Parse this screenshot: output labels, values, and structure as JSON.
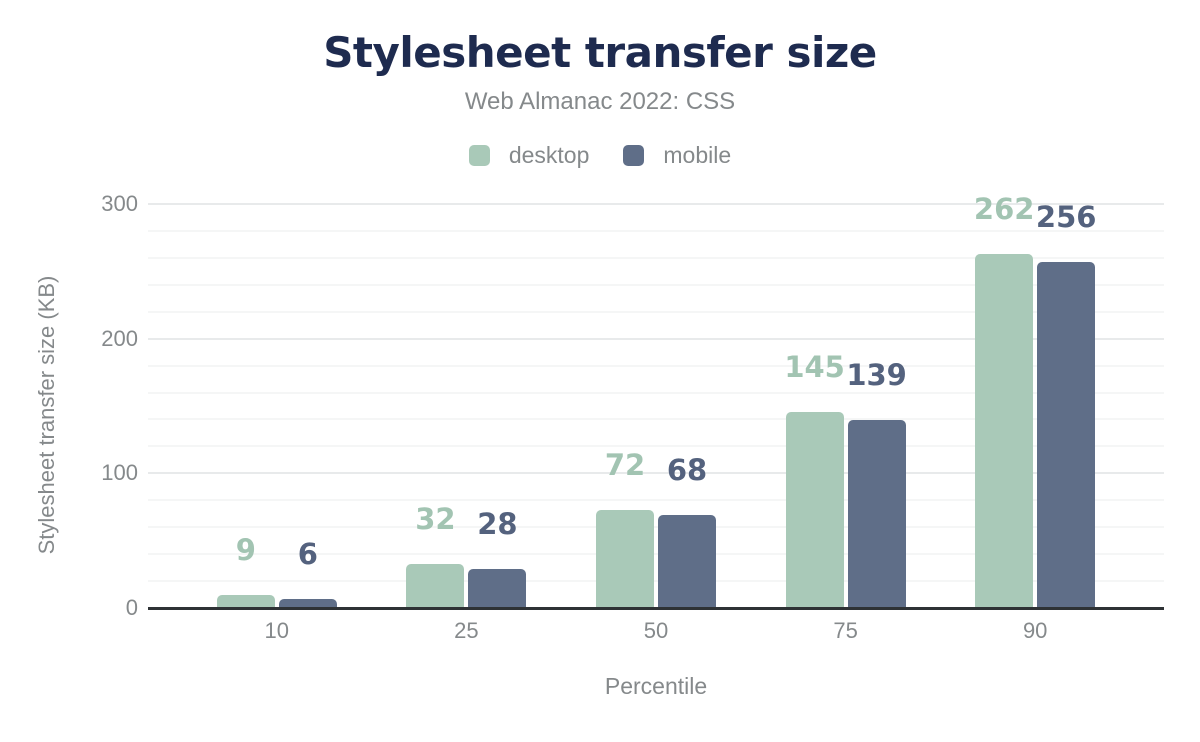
{
  "chart_data": {
    "type": "bar",
    "title": "Stylesheet transfer size",
    "subtitle": "Web Almanac 2022: CSS",
    "xlabel": "Percentile",
    "ylabel": "Stylesheet transfer size (KB)",
    "categories": [
      "10",
      "25",
      "50",
      "75",
      "90"
    ],
    "series": [
      {
        "name": "desktop",
        "values": [
          9,
          32,
          72,
          145,
          262
        ],
        "color": "#a9c9b8",
        "label_color": "#a2c4b2"
      },
      {
        "name": "mobile",
        "values": [
          6,
          28,
          68,
          139,
          256
        ],
        "color": "#5f6e88",
        "label_color": "#54627e"
      }
    ],
    "ylim": [
      0,
      300
    ],
    "yticks": [
      0,
      100,
      200,
      300
    ],
    "minor_gridline_step": 20,
    "grid": "on",
    "legend_position": "top"
  },
  "colors": {
    "title": "#1e2b4f",
    "muted_text": "#85898b",
    "axis_line": "#2e3235",
    "grid_major": "#e8eaeb",
    "grid_minor": "#f5f6f6",
    "background": "#ffffff"
  }
}
